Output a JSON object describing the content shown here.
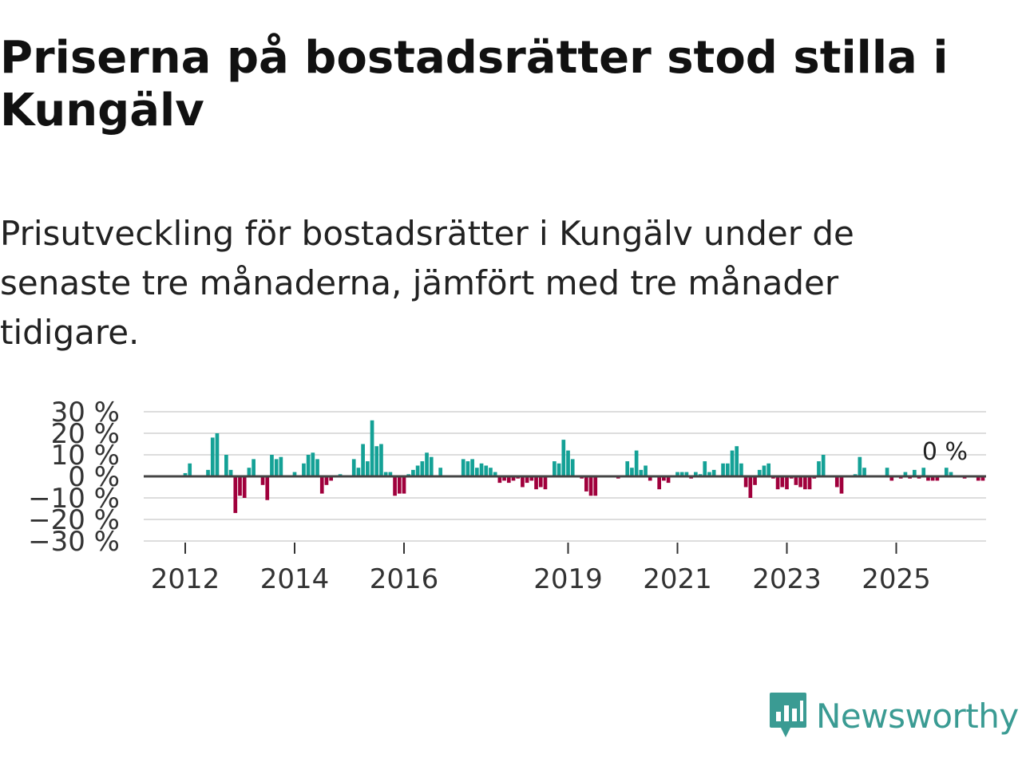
{
  "header": {
    "title": "Priserna på bostadsrätter stod stilla i Kungälv",
    "subtitle": "Prisutveckling för bostadsrätter i Kungälv under de senaste tre månaderna, jämfört med tre månader tidigare."
  },
  "chart_data": {
    "type": "bar",
    "title": "Priserna på bostadsrätter stod stilla i Kungälv",
    "xlabel": "",
    "ylabel": "",
    "ylim": [
      -30,
      30
    ],
    "grid": true,
    "y_tick_values": [
      30,
      20,
      10,
      0,
      -10,
      -20,
      -30
    ],
    "y_tick_labels": [
      "30 %",
      "20 %",
      "10 %",
      "0 %",
      "−10 %",
      "−20 %",
      "−30 %"
    ],
    "x_tick_values": [
      2012,
      2014,
      2016,
      2019,
      2021,
      2023,
      2025
    ],
    "x_tick_labels": [
      "2012",
      "2014",
      "2016",
      "2019",
      "2021",
      "2023",
      "2025"
    ],
    "x_start": 2011.25,
    "bar_step_years": 0.0833333,
    "positive_color": "#14a196",
    "negative_color": "#a0003c",
    "zero_line_color": "#444444",
    "end_label": "0 %",
    "values": [
      0,
      0,
      0,
      0,
      0,
      0,
      0,
      0,
      0,
      1.5,
      6,
      0,
      -0.5,
      0,
      3,
      18,
      20,
      0,
      10,
      3,
      -17,
      -9,
      -10,
      4,
      8,
      0,
      -4,
      -11,
      10,
      8,
      9,
      0,
      0,
      2,
      0,
      6,
      10,
      11,
      8,
      -8,
      -4,
      -2,
      0,
      1,
      0,
      0,
      8,
      4,
      15,
      7,
      26,
      14,
      15,
      2,
      2,
      -9,
      -8,
      -8,
      1,
      3,
      5,
      7,
      11,
      9,
      0,
      4,
      0,
      0,
      0,
      0,
      8,
      7,
      8,
      4,
      6,
      5,
      4,
      2,
      -3,
      -2,
      -3,
      -2,
      -1,
      -5,
      -3,
      -2,
      -6,
      -5,
      -6,
      0,
      7,
      6,
      17,
      12,
      8,
      0,
      -1,
      -7,
      -9,
      -9,
      0,
      0,
      0,
      0,
      -1,
      0,
      7,
      4,
      12,
      3,
      5,
      -2,
      0,
      -6,
      -2,
      -3,
      0,
      2,
      2,
      2,
      -1,
      2,
      1,
      7,
      2,
      3,
      0,
      6,
      6,
      12,
      14,
      6,
      -5,
      -10,
      -4,
      3,
      5,
      6,
      -1,
      -6,
      -5,
      -6,
      -1,
      -4,
      -5,
      -6,
      -6,
      -1,
      7,
      10,
      0,
      0,
      -5,
      -8,
      0,
      0,
      1,
      9,
      4,
      0,
      0,
      0,
      0,
      4,
      -2,
      0,
      -1,
      2,
      -1,
      3,
      -1,
      4,
      -2,
      -2,
      -2,
      0,
      4,
      2,
      0,
      0,
      -1,
      0,
      0,
      -2,
      -2,
      0
    ]
  },
  "branding": {
    "logo_text": "Newsworthy",
    "logo_icon": "bar-chart-speech-icon",
    "logo_color": "#3a9b93"
  }
}
